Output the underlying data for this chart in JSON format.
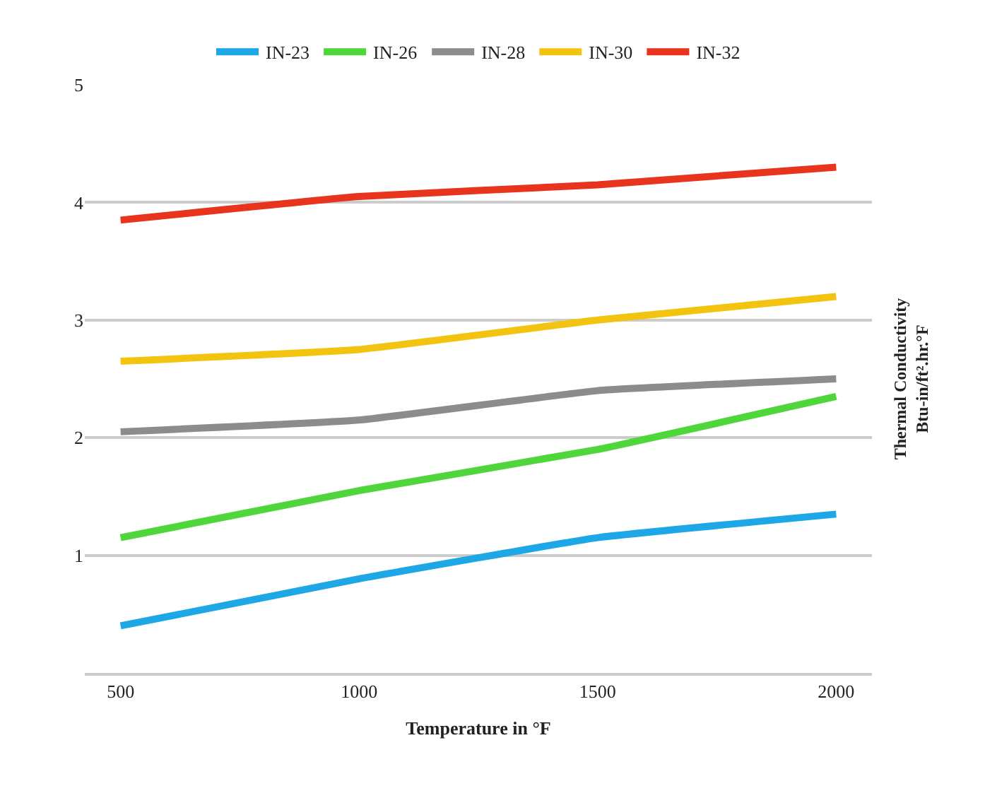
{
  "chart_data": {
    "type": "line",
    "xlabel": "Temperature in °F",
    "ylabel": "Thermal Conductivity\nBtu-in/ft².hr.°F",
    "categories": [
      "500",
      "1000",
      "1500",
      "2000"
    ],
    "series": [
      {
        "name": "IN-23",
        "color": "#1ea7e6",
        "values": [
          0.4,
          0.8,
          1.15,
          1.35
        ]
      },
      {
        "name": "IN-26",
        "color": "#4fd63a",
        "values": [
          1.15,
          1.55,
          1.9,
          2.35
        ]
      },
      {
        "name": "IN-28",
        "color": "#8c8c8c",
        "values": [
          2.05,
          2.15,
          2.4,
          2.5
        ]
      },
      {
        "name": "IN-30",
        "color": "#f2c40f",
        "values": [
          2.65,
          2.75,
          3.0,
          3.2
        ]
      },
      {
        "name": "IN-32",
        "color": "#e8341c",
        "values": [
          3.85,
          4.05,
          4.15,
          4.3
        ]
      }
    ],
    "ylim": [
      0,
      5
    ],
    "yticks": [
      1,
      2,
      3,
      4,
      5
    ],
    "grid": "y",
    "legend": "top",
    "line_style": "solid",
    "marker": "none"
  }
}
